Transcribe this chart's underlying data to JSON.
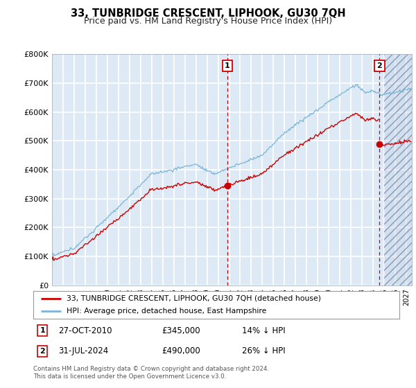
{
  "title": "33, TUNBRIDGE CRESCENT, LIPHOOK, GU30 7QH",
  "subtitle": "Price paid vs. HM Land Registry's House Price Index (HPI)",
  "legend_line1": "33, TUNBRIDGE CRESCENT, LIPHOOK, GU30 7QH (detached house)",
  "legend_line2": "HPI: Average price, detached house, East Hampshire",
  "marker1_date": "27-OCT-2010",
  "marker1_price": 345000,
  "marker1_pct": "14% ↓ HPI",
  "marker1_year": 2010.83,
  "marker2_date": "31-JUL-2024",
  "marker2_price": 490000,
  "marker2_pct": "26% ↓ HPI",
  "marker2_year": 2024.58,
  "note": "Contains HM Land Registry data © Crown copyright and database right 2024.\nThis data is licensed under the Open Government Licence v3.0.",
  "hpi_color": "#7ab4d8",
  "price_color": "#cc0000",
  "marker_box_color": "#cc0000",
  "bg_color": "#ddeaf5",
  "grid_color": "#ffffff",
  "ylim": [
    0,
    800000
  ],
  "xlim_start": 1995.0,
  "xlim_end": 2027.5,
  "hatch_start": 2025.0
}
